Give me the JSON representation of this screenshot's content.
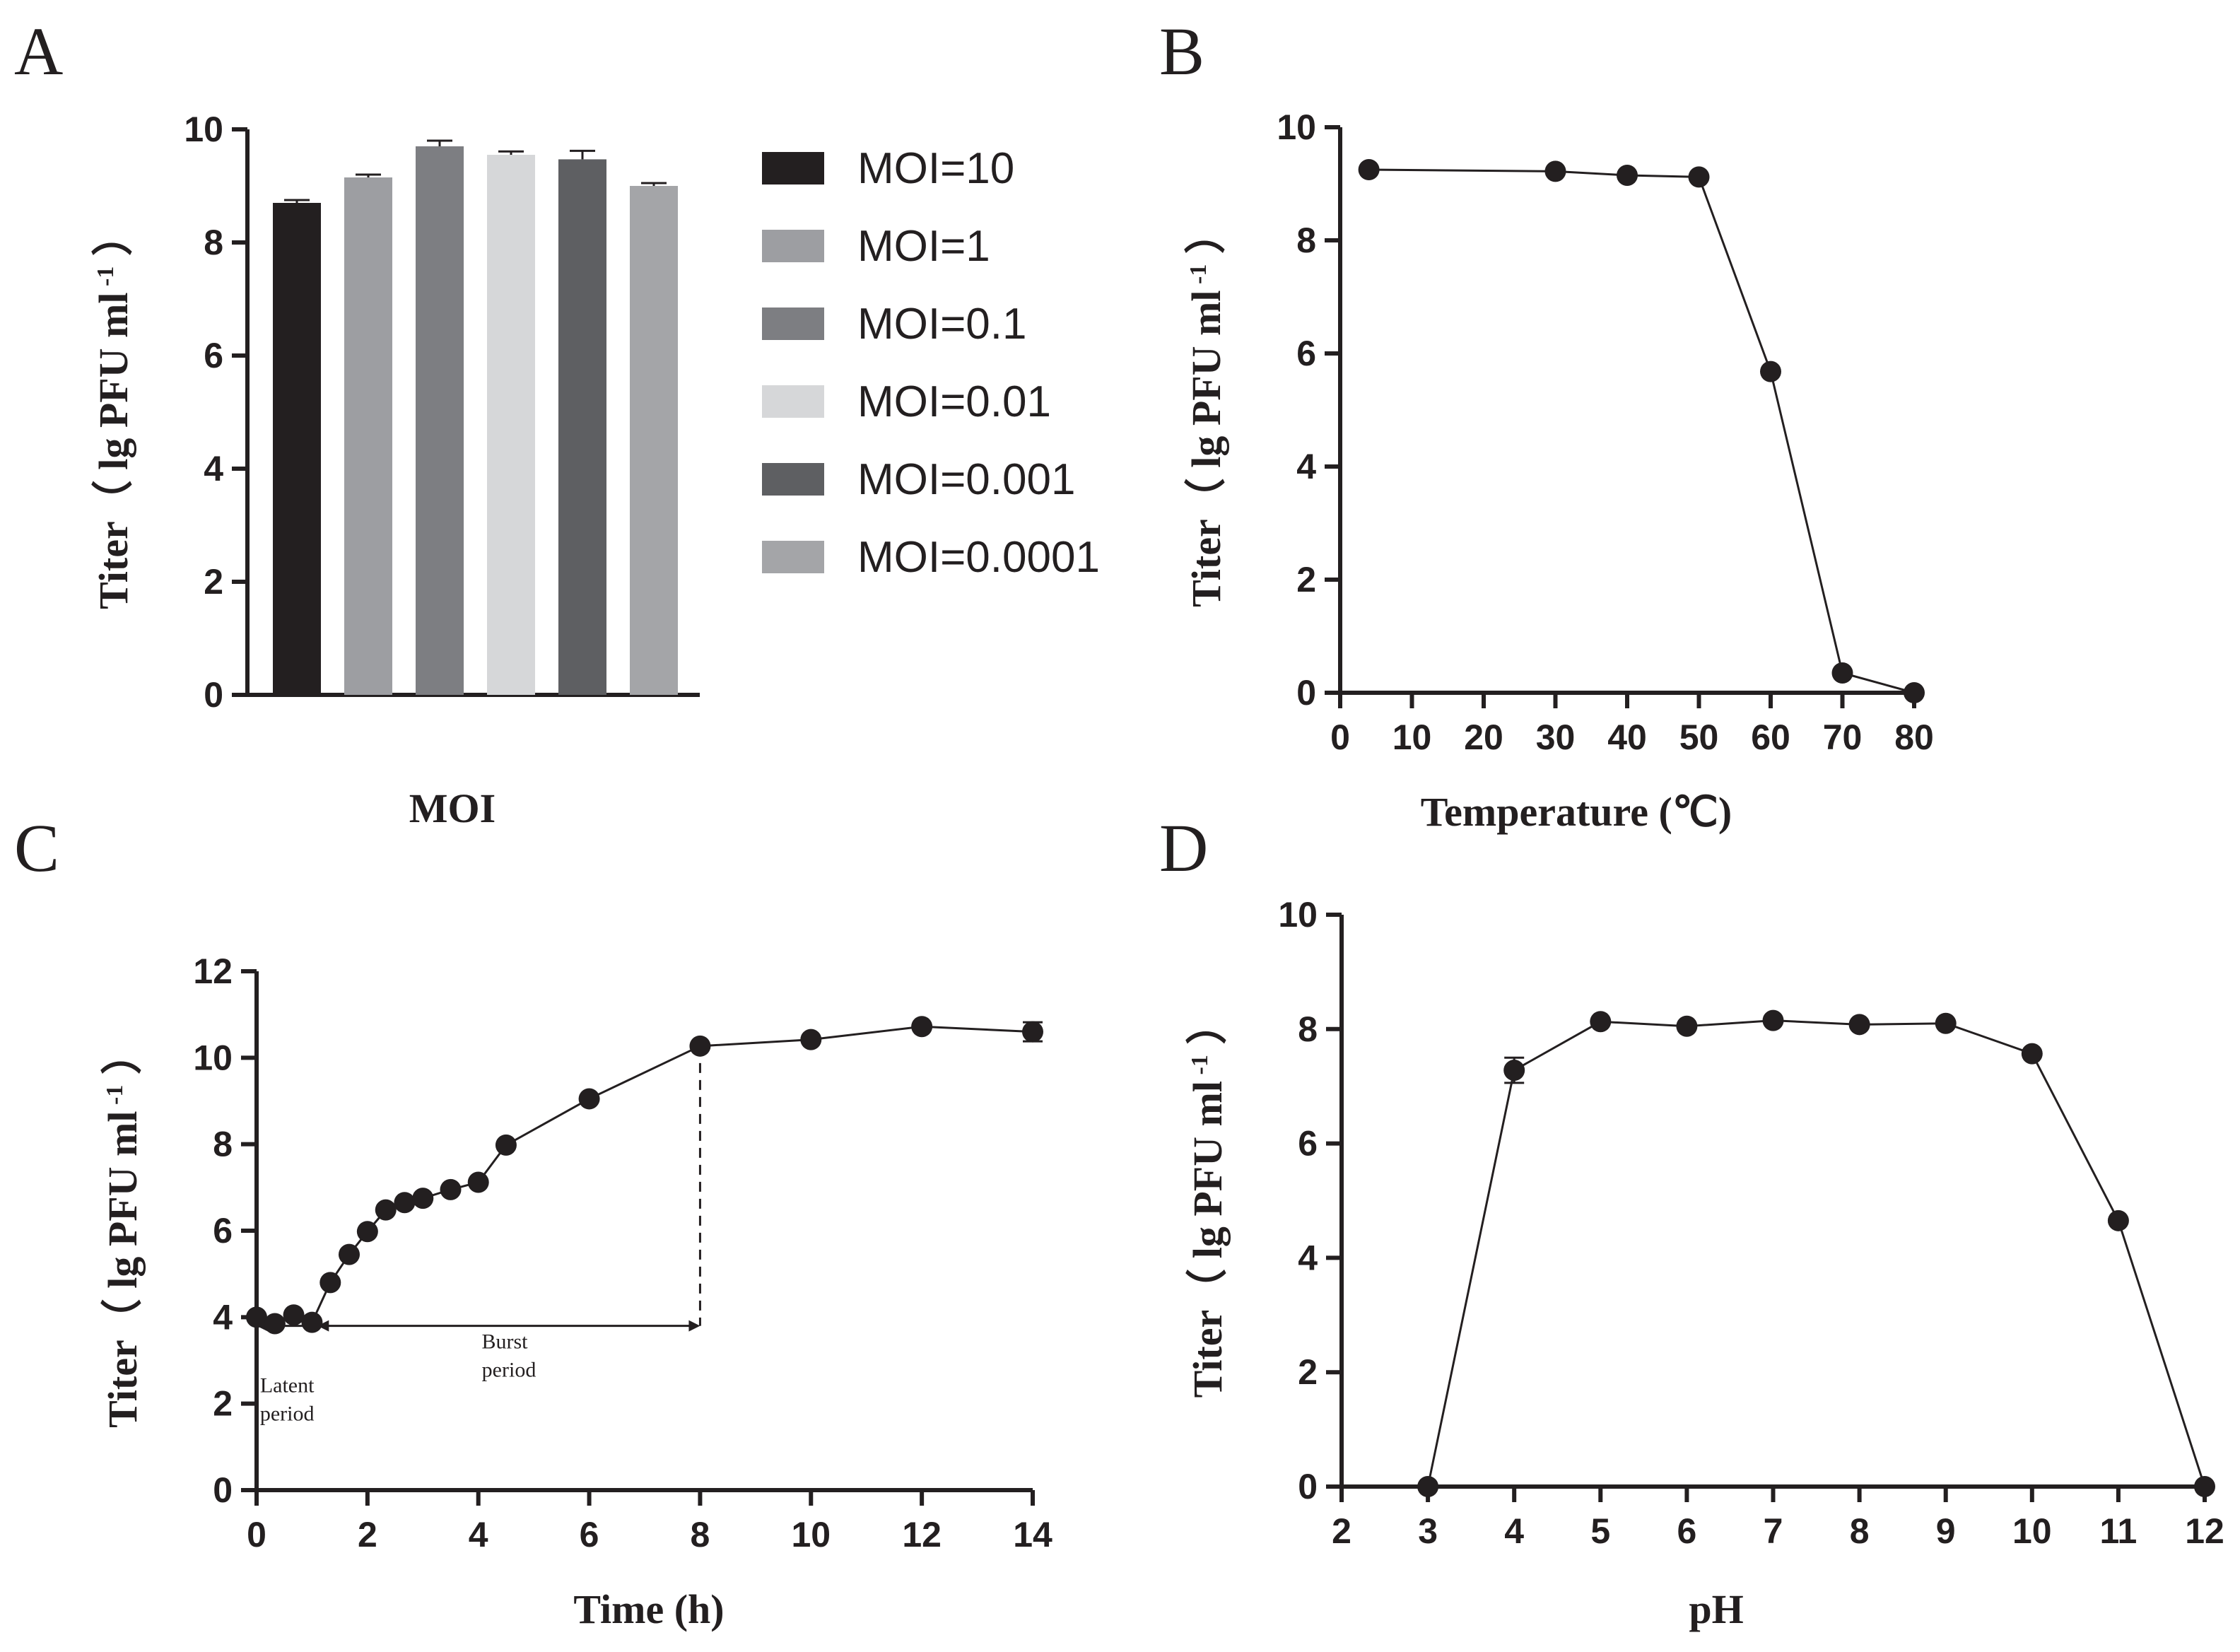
{
  "chart_data": [
    {
      "panel": "A",
      "type": "bar",
      "categories": [
        "MOI=10",
        "MOI=1",
        "MOI=0.1",
        "MOI=0.01",
        "MOI=0.001",
        "MOI=0.0001"
      ],
      "values": [
        8.7,
        9.15,
        9.7,
        9.55,
        9.47,
        9.0
      ],
      "errors": [
        0.05,
        0.05,
        0.1,
        0.06,
        0.15,
        0.05
      ],
      "colors": [
        "#231f20",
        "#9d9ea2",
        "#7d7e82",
        "#d6d7d9",
        "#5e5f62",
        "#a4a5a8"
      ],
      "xlabel": "MOI",
      "ylabel_main": "Titer（ lg PFU ml",
      "ylabel_sup": "-1",
      "ylabel_close": "）",
      "ylim": [
        0,
        10
      ],
      "yticks": [
        "0",
        "2",
        "4",
        "6",
        "8",
        "10"
      ],
      "legend": [
        "MOI=10",
        "MOI=1",
        "MOI=0.1",
        "MOI=0.01",
        "MOI=0.001",
        "MOI=0.0001"
      ],
      "legend_position": "right"
    },
    {
      "panel": "B",
      "type": "line",
      "x": [
        4,
        30,
        40,
        50,
        60,
        70,
        80
      ],
      "y": [
        9.25,
        9.22,
        9.15,
        9.12,
        5.68,
        0.35,
        0.0
      ],
      "xlabel": "Temperature (℃)",
      "ylabel_main": "Titer（ lg PFU ml",
      "ylabel_sup": "-1",
      "ylabel_close": "）",
      "xlim": [
        0,
        80
      ],
      "ylim": [
        0,
        10
      ],
      "xticks": [
        "0",
        "10",
        "20",
        "30",
        "40",
        "50",
        "60",
        "70",
        "80"
      ],
      "yticks": [
        "0",
        "2",
        "4",
        "6",
        "8",
        "10"
      ]
    },
    {
      "panel": "C",
      "type": "line",
      "x": [
        0,
        0.33,
        0.67,
        1,
        1.33,
        1.67,
        2,
        2.33,
        2.67,
        3,
        3.5,
        4,
        4.5,
        6,
        8,
        10,
        12,
        14
      ],
      "y": [
        4.0,
        3.85,
        4.05,
        3.88,
        4.8,
        5.45,
        5.98,
        6.48,
        6.65,
        6.75,
        6.95,
        7.12,
        7.98,
        9.05,
        10.27,
        10.42,
        10.72,
        10.6
      ],
      "errors": [
        0,
        0,
        0,
        0,
        0,
        0,
        0,
        0,
        0,
        0,
        0,
        0,
        0,
        0,
        0,
        0,
        0,
        0.22
      ],
      "xlabel": "Time (h)",
      "ylabel_main": "Titer（ lg PFU ml",
      "ylabel_sup": "-1",
      "ylabel_close": "）",
      "xlim": [
        0,
        14
      ],
      "ylim": [
        0,
        12
      ],
      "xticks": [
        "0",
        "2",
        "4",
        "6",
        "8",
        "10",
        "12",
        "14"
      ],
      "yticks": [
        "0",
        "2",
        "4",
        "6",
        "8",
        "10",
        "12"
      ],
      "annotations": {
        "latent_line1": "Latent",
        "latent_line2": "period",
        "burst_line1": "Burst",
        "burst_line2": "period",
        "latent_range": [
          0,
          1.1
        ],
        "burst_range": [
          1.1,
          8
        ],
        "arrow_y": 3.8,
        "dashed_x": 8
      }
    },
    {
      "panel": "D",
      "type": "line",
      "x": [
        3,
        4,
        5,
        6,
        7,
        8,
        9,
        10,
        11,
        12
      ],
      "y": [
        0.0,
        7.28,
        8.13,
        8.05,
        8.15,
        8.08,
        8.1,
        7.57,
        4.65,
        0.0
      ],
      "errors": [
        0,
        0.22,
        0,
        0,
        0,
        0,
        0,
        0,
        0,
        0
      ],
      "xlabel": "pH",
      "ylabel_main": "Titer（ lg PFU ml",
      "ylabel_sup": "-1",
      "ylabel_close": "）",
      "xlim": [
        2,
        12
      ],
      "ylim": [
        0,
        10
      ],
      "xticks": [
        "2",
        "3",
        "4",
        "5",
        "6",
        "7",
        "8",
        "9",
        "10",
        "11",
        "12"
      ],
      "yticks": [
        "0",
        "2",
        "4",
        "6",
        "8",
        "10"
      ]
    }
  ]
}
